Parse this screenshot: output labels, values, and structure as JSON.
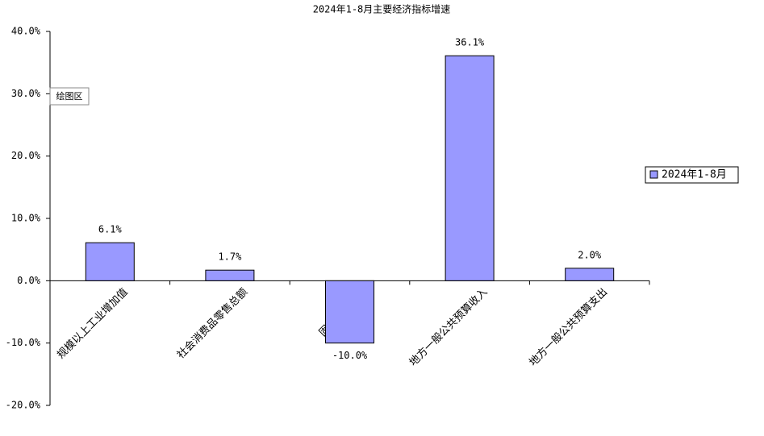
{
  "chart_data": {
    "type": "bar",
    "title": "2024年1-8月主要经济指标增速",
    "annotation": "绘图区",
    "categories": [
      "规模以上工业增加值",
      "社会消费品零售总额",
      "固定资产投资",
      "地方一般公共预算收入",
      "地方一般公共预算支出"
    ],
    "series": [
      {
        "name": "2024年1-8月",
        "color": "#9999ff",
        "values": [
          6.1,
          1.7,
          -10.0,
          36.1,
          2.0
        ],
        "value_labels": [
          "6.1%",
          "1.7%",
          "-10.0%",
          "36.1%",
          "2.0%"
        ]
      }
    ],
    "ylim": [
      -20,
      40
    ],
    "yticks": [
      {
        "value": -20,
        "label": "-20.0%"
      },
      {
        "value": -10,
        "label": "-10.0%"
      },
      {
        "value": 0,
        "label": "0.0%"
      },
      {
        "value": 10,
        "label": "10.0%"
      },
      {
        "value": 20,
        "label": "20.0%"
      },
      {
        "value": 30,
        "label": "30.0%"
      },
      {
        "value": 40,
        "label": "40.0%"
      }
    ],
    "grid": false,
    "legend": "right"
  }
}
